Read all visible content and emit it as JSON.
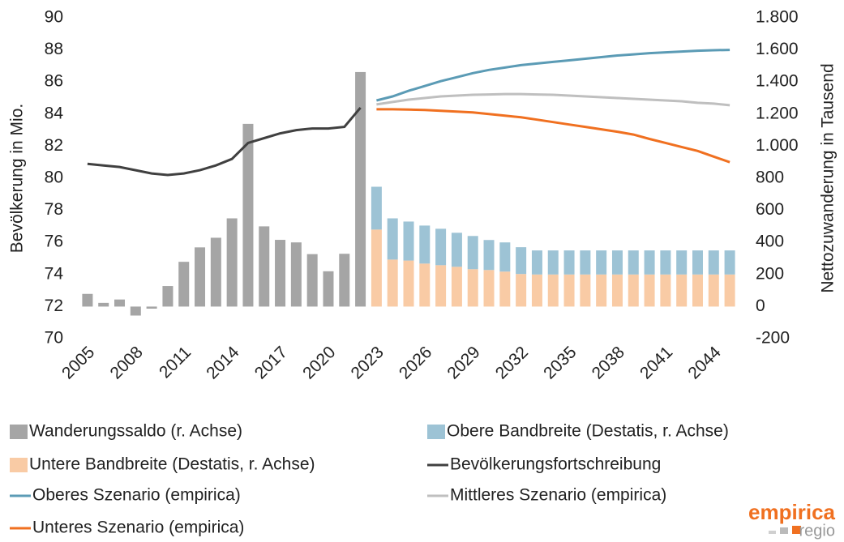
{
  "chart_data": {
    "type": "combo",
    "categories": [
      "2005",
      null,
      null,
      "2008",
      null,
      null,
      "2011",
      null,
      null,
      "2014",
      null,
      null,
      "2017",
      null,
      null,
      "2020",
      null,
      null,
      "2023",
      null,
      null,
      "2026",
      null,
      null,
      "2029",
      null,
      null,
      "2032",
      null,
      null,
      "2035",
      null,
      null,
      "2038",
      null,
      null,
      "2041",
      null,
      null,
      "2044",
      null
    ],
    "ylabel": "Bevölkerung in Mio.",
    "y2label": "Nettozuwanderung in Tausend",
    "ylim": [
      70,
      90
    ],
    "yticks": [
      70,
      72,
      74,
      76,
      78,
      80,
      82,
      84,
      86,
      88,
      90
    ],
    "y2lim": [
      -200,
      1800
    ],
    "y2ticks": [
      -200,
      0,
      200,
      400,
      600,
      800,
      {
        "value": 1000,
        "label": "1.000"
      },
      {
        "value": 1200,
        "label": "1.200"
      },
      {
        "value": 1400,
        "label": "1.400"
      },
      {
        "value": 1600,
        "label": "1.600"
      },
      {
        "value": 1800,
        "label": "1.800"
      }
    ],
    "grid": false,
    "series": [
      {
        "name": "Wanderungssaldo (r. Achse)",
        "type": "bar",
        "axis": "y2",
        "color": "#a5a5a5",
        "values": [
          79,
          23,
          44,
          -56,
          -13,
          128,
          279,
          369,
          429,
          550,
          1139,
          500,
          416,
          400,
          327,
          220,
          329,
          1462,
          null,
          null,
          null,
          null,
          null,
          null,
          null,
          null,
          null,
          null,
          null,
          null,
          null,
          null,
          null,
          null,
          null,
          null,
          null,
          null,
          null,
          null,
          null
        ]
      },
      {
        "name": "Obere Bandbreite (Destatis, r. Achse)",
        "type": "bar",
        "axis": "y2",
        "stack": "band",
        "color": "#9dc3d5",
        "values": [
          null,
          null,
          null,
          null,
          null,
          null,
          null,
          null,
          null,
          null,
          null,
          null,
          null,
          null,
          null,
          null,
          null,
          null,
          267,
          257,
          243,
          237,
          227,
          212,
          207,
          187,
          182,
          167,
          150,
          150,
          150,
          150,
          150,
          150,
          150,
          150,
          150,
          150,
          150,
          150,
          150
        ]
      },
      {
        "name": "Untere Bandbreite (Destatis, r. Achse)",
        "type": "bar",
        "axis": "y2",
        "stack": "band",
        "color": "#f9cba5",
        "values": [
          null,
          null,
          null,
          null,
          null,
          null,
          null,
          null,
          null,
          null,
          null,
          null,
          null,
          null,
          null,
          null,
          null,
          null,
          480,
          293,
          287,
          268,
          258,
          248,
          233,
          228,
          218,
          203,
          200,
          200,
          200,
          200,
          200,
          200,
          200,
          200,
          200,
          200,
          200,
          200,
          200
        ]
      },
      {
        "name": "Bevölkerungsfortschreibung",
        "type": "line",
        "color": "#404040",
        "values": [
          80.9,
          80.8,
          80.7,
          80.5,
          80.3,
          80.2,
          80.3,
          80.5,
          80.8,
          81.2,
          82.2,
          82.5,
          82.8,
          83.0,
          83.1,
          83.1,
          83.2,
          84.4,
          null,
          null,
          null,
          null,
          null,
          null,
          null,
          null,
          null,
          null,
          null,
          null,
          null,
          null,
          null,
          null,
          null,
          null,
          null,
          null,
          null,
          null,
          null
        ]
      },
      {
        "name": "Oberes Szenario (empirica)",
        "type": "line",
        "color": "#5b9bb5",
        "values": [
          null,
          null,
          null,
          null,
          null,
          null,
          null,
          null,
          null,
          null,
          null,
          null,
          null,
          null,
          null,
          null,
          null,
          null,
          84.85,
          85.1,
          85.45,
          85.75,
          86.05,
          86.3,
          86.55,
          86.75,
          86.9,
          87.05,
          87.15,
          87.25,
          87.35,
          87.45,
          87.55,
          87.65,
          87.72,
          87.8,
          87.85,
          87.9,
          87.95,
          87.98,
          88.0
        ]
      },
      {
        "name": "Mittleres Szenario (empirica)",
        "type": "line",
        "color": "#bfbfbf",
        "values": [
          null,
          null,
          null,
          null,
          null,
          null,
          null,
          null,
          null,
          null,
          null,
          null,
          null,
          null,
          null,
          null,
          null,
          null,
          84.6,
          84.75,
          84.9,
          85.0,
          85.1,
          85.15,
          85.2,
          85.22,
          85.25,
          85.25,
          85.22,
          85.2,
          85.15,
          85.1,
          85.05,
          85.0,
          84.95,
          84.9,
          84.85,
          84.8,
          84.7,
          84.65,
          84.55
        ]
      },
      {
        "name": "Unteres Szenario (empirica)",
        "type": "line",
        "color": "#f07020",
        "values": [
          null,
          null,
          null,
          null,
          null,
          null,
          null,
          null,
          null,
          null,
          null,
          null,
          null,
          null,
          null,
          null,
          null,
          null,
          84.3,
          84.3,
          84.28,
          84.25,
          84.2,
          84.15,
          84.1,
          84.0,
          83.9,
          83.8,
          83.65,
          83.5,
          83.35,
          83.2,
          83.05,
          82.9,
          82.72,
          82.45,
          82.2,
          81.95,
          81.7,
          81.35,
          81.0
        ]
      }
    ],
    "brand": "empirica",
    "brand_sub": "regio"
  }
}
